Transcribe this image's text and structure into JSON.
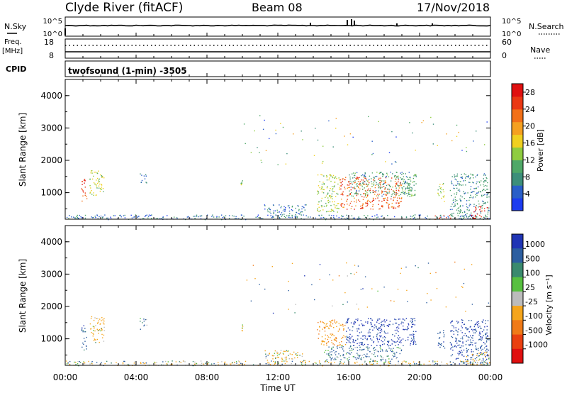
{
  "header": {
    "station": "Clyde River (fitACF)",
    "beam": "Beam 08",
    "date": "17/Nov/2018"
  },
  "status_panels": {
    "nsky_label": "N.Sky",
    "nsky_ticks": [
      "10^5",
      "10^0"
    ],
    "nsearch_label": "N.Search",
    "nsearch_ticks": [
      "10^5",
      "10^0"
    ],
    "freq_label": "Freq.",
    "freq_unit": "[MHz]",
    "freq_ticks": [
      "18",
      "8"
    ],
    "nave_label": "Nave",
    "nave_ticks": [
      "60",
      "0"
    ],
    "cpid_label": "CPID",
    "cpid_value": "twofsound (1-min) -3505"
  },
  "x_axis": {
    "label": "Time UT",
    "ticks": [
      "00:00",
      "04:00",
      "08:00",
      "12:00",
      "16:00",
      "20:00",
      "00:00"
    ]
  },
  "power_scale": {
    "label": "Power [dB]",
    "ticks": [
      "4",
      "8",
      "12",
      "16",
      "20",
      "24",
      "28"
    ],
    "colors": [
      "#1c3cf0",
      "#2a5fc8",
      "#3d8f7a",
      "#4fa868",
      "#8fcc40",
      "#f0d020",
      "#f5a020",
      "#f27018",
      "#ea3814",
      "#e01010"
    ]
  },
  "velocity_scale": {
    "label": "Velocity [m s⁻¹]",
    "ticks": [
      "1000",
      "500",
      "100",
      "25",
      "-25",
      "-100",
      "-500",
      "-1000"
    ],
    "colors": [
      "#2035b5",
      "#2c5ea0",
      "#3a8a6e",
      "#58c040",
      "#bcbcbc",
      "#f5a51c",
      "#f07a18",
      "#ea4010",
      "#e01010"
    ]
  },
  "chart_data": [
    {
      "type": "heatmap",
      "title": "Power",
      "ylabel": "Slant Range [km]",
      "xlabel": "",
      "xlim": [
        0,
        24
      ],
      "ylim": [
        180,
        4500
      ],
      "y_ticks": [
        "1000",
        "2000",
        "3000",
        "4000"
      ],
      "colorbar": "Power [dB]",
      "clim": [
        0,
        30
      ],
      "blobs": [
        {
          "t0": 0.9,
          "t1": 1.2,
          "r0": 650,
          "r1": 1450,
          "value": 26
        },
        {
          "t0": 1.35,
          "t1": 2.2,
          "r0": 900,
          "r1": 1700,
          "value": 14
        },
        {
          "t0": 4.2,
          "t1": 4.6,
          "r0": 1300,
          "r1": 1650,
          "value": 7
        },
        {
          "t0": 9.9,
          "t1": 10.0,
          "r0": 1250,
          "r1": 1450,
          "value": 12
        },
        {
          "t0": 11.2,
          "t1": 13.6,
          "r0": 300,
          "r1": 650,
          "value": 6
        },
        {
          "t0": 14.2,
          "t1": 15.5,
          "r0": 400,
          "r1": 1600,
          "value": 14
        },
        {
          "t0": 15.5,
          "t1": 19.0,
          "r0": 500,
          "r1": 1500,
          "value": 24
        },
        {
          "t0": 16.0,
          "t1": 19.5,
          "r0": 900,
          "r1": 1650,
          "value": 9
        },
        {
          "t0": 19.0,
          "t1": 19.8,
          "r0": 900,
          "r1": 1600,
          "value": 10
        },
        {
          "t0": 21.0,
          "t1": 21.4,
          "r0": 700,
          "r1": 1300,
          "value": 14
        },
        {
          "t0": 21.7,
          "t1": 23.9,
          "r0": 200,
          "r1": 1600,
          "value": 8
        },
        {
          "t0": 22.9,
          "t1": 23.8,
          "r0": 200,
          "r1": 600,
          "value": 27
        },
        {
          "t0": 20.8,
          "t1": 21.8,
          "r0": 180,
          "r1": 320,
          "value": 25
        },
        {
          "t0": 0.0,
          "t1": 24.0,
          "r0": 180,
          "r1": 330,
          "value": 6
        }
      ]
    },
    {
      "type": "heatmap",
      "title": "Velocity",
      "ylabel": "Slant Range [km]",
      "xlabel": "Time UT",
      "xlim": [
        0,
        24
      ],
      "ylim": [
        180,
        4500
      ],
      "y_ticks": [
        "1000",
        "2000",
        "3000",
        "4000"
      ],
      "colorbar": "Velocity [m s⁻¹]",
      "clim": [
        -1000,
        1000
      ],
      "blobs": [
        {
          "t0": 0.9,
          "t1": 1.2,
          "r0": 650,
          "r1": 1450,
          "value": 300
        },
        {
          "t0": 1.35,
          "t1": 2.2,
          "r0": 900,
          "r1": 1700,
          "value": -200
        },
        {
          "t0": 4.2,
          "t1": 4.6,
          "r0": 1300,
          "r1": 1650,
          "value": 120
        },
        {
          "t0": 9.9,
          "t1": 10.0,
          "r0": 1250,
          "r1": 1450,
          "value": -150
        },
        {
          "t0": 11.2,
          "t1": 13.6,
          "r0": 300,
          "r1": 650,
          "value": -120
        },
        {
          "t0": 14.2,
          "t1": 15.8,
          "r0": 800,
          "r1": 1600,
          "value": -400
        },
        {
          "t0": 15.8,
          "t1": 19.8,
          "r0": 800,
          "r1": 1650,
          "value": 600
        },
        {
          "t0": 14.6,
          "t1": 19.0,
          "r0": 300,
          "r1": 800,
          "value": 200
        },
        {
          "t0": 21.0,
          "t1": 21.4,
          "r0": 700,
          "r1": 1300,
          "value": 400
        },
        {
          "t0": 21.7,
          "t1": 23.9,
          "r0": 200,
          "r1": 1600,
          "value": 500
        },
        {
          "t0": 22.6,
          "t1": 23.9,
          "r0": 200,
          "r1": 600,
          "value": -200
        },
        {
          "t0": 0.0,
          "t1": 24.0,
          "r0": 180,
          "r1": 330,
          "value": -80
        }
      ]
    }
  ]
}
